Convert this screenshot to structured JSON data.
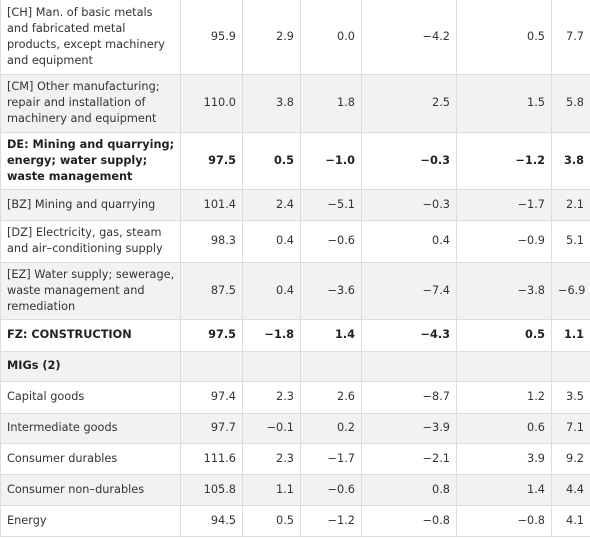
{
  "rows": [
    {
      "label": "[CH] Man. of basic metals and fabricated metal products, except machinery and equipment",
      "values": [
        "95.9",
        "2.9",
        "0.0",
        "−4.2",
        "0.5",
        "7.7"
      ],
      "bold": false,
      "shaded": false
    },
    {
      "label": "[CM] Other manufacturing; repair and installation of machinery and equipment",
      "values": [
        "110.0",
        "3.8",
        "1.8",
        "2.5",
        "1.5",
        "5.8"
      ],
      "bold": false,
      "shaded": true
    },
    {
      "label": "DE: Mining and quarrying; energy; water supply; waste management",
      "values": [
        "97.5",
        "0.5",
        "−1.0",
        "−0.3",
        "−1.2",
        "3.8"
      ],
      "bold": true,
      "shaded": false
    },
    {
      "label": "[BZ] Mining and quarrying",
      "values": [
        "101.4",
        "2.4",
        "−5.1",
        "−0.3",
        "−1.7",
        "2.1"
      ],
      "bold": false,
      "shaded": true
    },
    {
      "label": "[DZ] Electricity, gas, steam and air–conditioning supply",
      "values": [
        "98.3",
        "0.4",
        "−0.6",
        "0.4",
        "−0.9",
        "5.1"
      ],
      "bold": false,
      "shaded": false
    },
    {
      "label": "[EZ] Water supply; sewerage, waste management and remediation",
      "values": [
        "87.5",
        "0.4",
        "−3.6",
        "−7.4",
        "−3.8",
        "−6.9"
      ],
      "bold": false,
      "shaded": true
    },
    {
      "label": "FZ: CONSTRUCTION",
      "values": [
        "97.5",
        "−1.8",
        "1.4",
        "−4.3",
        "0.5",
        "1.1"
      ],
      "bold": true,
      "shaded": false
    },
    {
      "label": "MIGs (2)",
      "values": [
        "",
        "",
        "",
        "",
        "",
        ""
      ],
      "bold": true,
      "shaded": true
    },
    {
      "label": "Capital goods",
      "values": [
        "97.4",
        "2.3",
        "2.6",
        "−8.7",
        "1.2",
        "3.5"
      ],
      "bold": false,
      "shaded": false
    },
    {
      "label": "Intermediate goods",
      "values": [
        "97.7",
        "−0.1",
        "0.2",
        "−3.9",
        "0.6",
        "7.1"
      ],
      "bold": false,
      "shaded": true
    },
    {
      "label": "Consumer durables",
      "values": [
        "111.6",
        "2.3",
        "−1.7",
        "−2.1",
        "3.9",
        "9.2"
      ],
      "bold": false,
      "shaded": false
    },
    {
      "label": "Consumer non–durables",
      "values": [
        "105.8",
        "1.1",
        "−0.6",
        "0.8",
        "1.4",
        "4.4"
      ],
      "bold": false,
      "shaded": true
    },
    {
      "label": "Energy",
      "values": [
        "94.5",
        "0.5",
        "−1.2",
        "−0.8",
        "−0.8",
        "4.1"
      ],
      "bold": false,
      "shaded": false
    }
  ]
}
